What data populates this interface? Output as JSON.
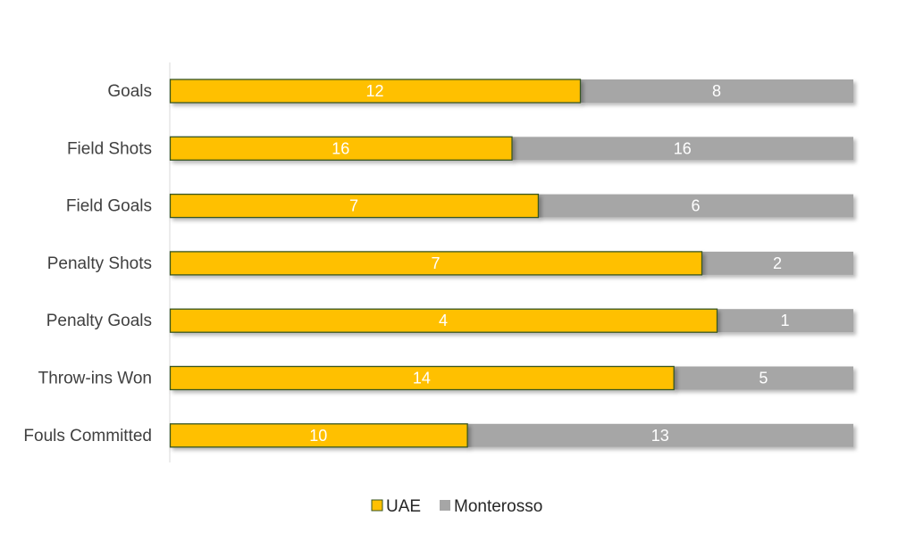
{
  "chart_data": {
    "type": "bar",
    "orientation": "horizontal",
    "stacking": "percent",
    "categories": [
      "Goals",
      "Field Shots",
      "Field Goals",
      "Penalty Shots",
      "Penalty Goals",
      "Throw-ins Won",
      "Fouls Committed"
    ],
    "series": [
      {
        "name": "UAE",
        "values": [
          12,
          16,
          7,
          7,
          4,
          14,
          10
        ],
        "color": "#FFC000",
        "border": "#375623"
      },
      {
        "name": "Monterosso",
        "values": [
          8,
          16,
          6,
          2,
          1,
          5,
          13
        ],
        "color": "#A6A6A6"
      }
    ],
    "data_labels": true,
    "grid": false,
    "legend_position": "bottom",
    "title": "",
    "xlabel": "",
    "ylabel": ""
  }
}
